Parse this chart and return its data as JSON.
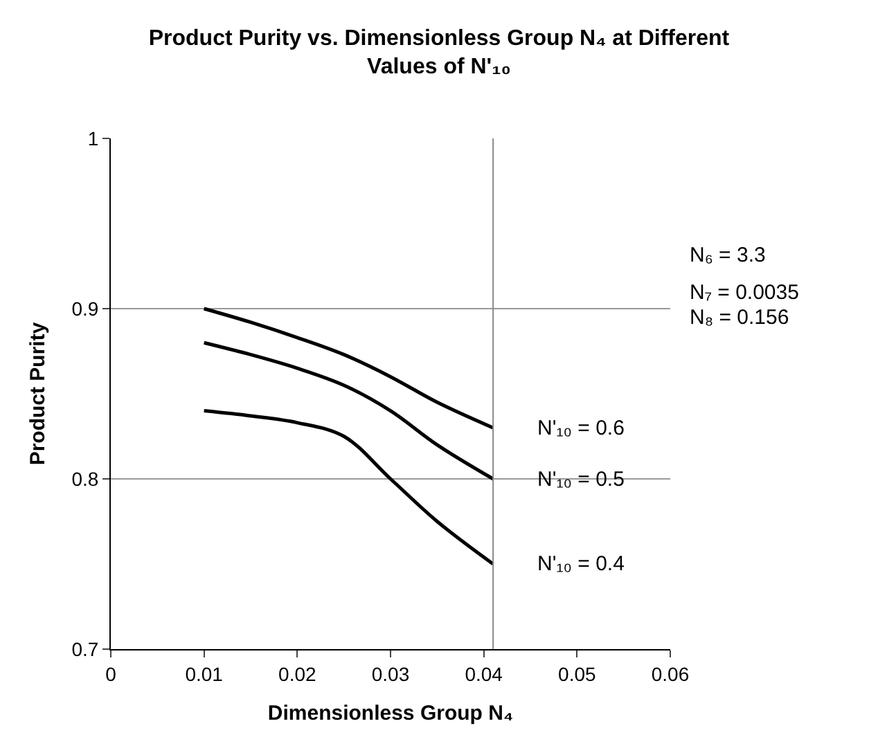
{
  "chart_data": {
    "type": "line",
    "title": "Product Purity vs. Dimensionless Group N₄ at Different Values of N'₁₀",
    "xlabel": "Dimensionless Group N₄",
    "ylabel": "Product Purity",
    "x": [
      0.01,
      0.015,
      0.02,
      0.025,
      0.03,
      0.035,
      0.041
    ],
    "series": [
      {
        "name": "N'₁₀ = 0.6",
        "color": "#000000",
        "values": [
          0.9,
          0.892,
          0.883,
          0.873,
          0.86,
          0.845,
          0.83
        ]
      },
      {
        "name": "N'₁₀ = 0.5",
        "color": "#000000",
        "values": [
          0.88,
          0.873,
          0.865,
          0.855,
          0.84,
          0.82,
          0.8
        ]
      },
      {
        "name": "N'₁₀ = 0.4",
        "color": "#000000",
        "values": [
          0.84,
          0.837,
          0.833,
          0.825,
          0.8,
          0.775,
          0.75
        ]
      }
    ],
    "xlim": [
      0,
      0.06
    ],
    "xticks": [
      0,
      0.01,
      0.02,
      0.03,
      0.04,
      0.05,
      0.06
    ],
    "ylim": [
      0.7,
      1
    ],
    "yticks": [
      0.7,
      0.8,
      0.9,
      1
    ],
    "ref_lines": [
      {
        "axis": "x",
        "value": 0.041
      }
    ],
    "annotations": [
      "N₆ = 3.3",
      "N₇ = 0.0035",
      "N₈ = 0.156"
    ],
    "grid": "y",
    "legend": false,
    "marker": "none",
    "line_style": "solid"
  }
}
